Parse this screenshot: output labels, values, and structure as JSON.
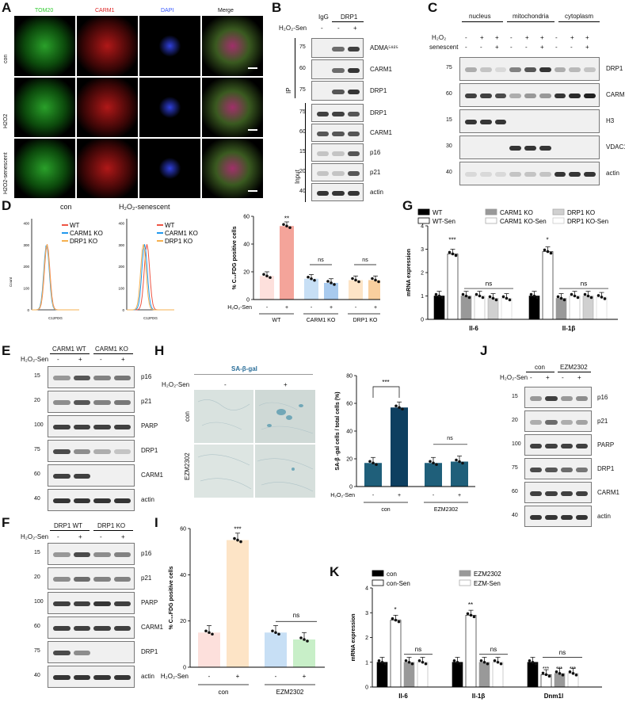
{
  "panels": {
    "A": {
      "letter": "A",
      "channels": [
        "TOM20",
        "CARM1",
        "DAPI",
        "Merge"
      ],
      "rows": [
        "con",
        "H2O2",
        "H2O2-senescent"
      ],
      "channel_colors": [
        "#33cc33",
        "#dd2222",
        "#3355ff",
        "#ffffff"
      ]
    },
    "B": {
      "letter": "B",
      "header_cols": [
        "IgG",
        "DRP1"
      ],
      "treatment_label": "H₂O₂-Sen",
      "treatment_signs": [
        "-",
        "-",
        "+"
      ],
      "ip_label": "IP",
      "input_label": "Input",
      "ip_blots": [
        {
          "mw": "75",
          "name": "ADMA⁵⁸²⁵"
        },
        {
          "mw": "60",
          "name": "CARM1"
        },
        {
          "mw": "75",
          "name": "DRP1"
        }
      ],
      "input_blots": [
        {
          "mw": "75",
          "name": "DRP1"
        },
        {
          "mw": "60",
          "name": "CARM1"
        },
        {
          "mw": "15",
          "name": "p16"
        },
        {
          "mw": "20",
          "name": "p21"
        },
        {
          "mw": "40",
          "name": "actin"
        }
      ]
    },
    "C": {
      "letter": "C",
      "fractions": [
        "nucleus",
        "mitochondria",
        "cytoplasm"
      ],
      "row1_label": "H₂O₂",
      "row2_label": "senescent",
      "row1_signs": [
        "-",
        "+",
        "+",
        "-",
        "+",
        "+",
        "-",
        "+",
        "+"
      ],
      "row2_signs": [
        "-",
        "-",
        "+",
        "-",
        "-",
        "+",
        "-",
        "-",
        "+"
      ],
      "blots": [
        {
          "mw": "75",
          "name": "DRP1"
        },
        {
          "mw": "60",
          "name": "CARM1"
        },
        {
          "mw": "15",
          "name": "H3"
        },
        {
          "mw": "30",
          "name": "VDAC1"
        },
        {
          "mw": "40",
          "name": "actin"
        }
      ]
    },
    "D": {
      "letter": "D",
      "hist_titles": [
        "con",
        "H₂O₂-senescent"
      ],
      "legend": [
        "WT",
        "CARM1 KO",
        "DRP1 KO"
      ],
      "legend_colors": [
        "#ee5544",
        "#2299ee",
        "#f5b050"
      ],
      "hist_xlabel": "C12FDG",
      "hist_ylabel": "Count",
      "hist_yticks": [
        "0",
        "100",
        "200",
        "300",
        "400"
      ],
      "bar_ylabel": "% C₁₂FDG positive cells",
      "bar_yticks": [
        "0",
        "20",
        "40",
        "60"
      ],
      "sign_label": "H₂O₂-Sen",
      "signs": [
        "-",
        "+",
        "-",
        "+",
        "-",
        "+"
      ],
      "groups": [
        "WT",
        "CARM1 KO",
        "DRP1 KO"
      ],
      "sig": [
        "**",
        "ns",
        "ns"
      ]
    },
    "E": {
      "letter": "E",
      "header_cols": [
        "CARM1 WT",
        "CARM1 KO"
      ],
      "treatment_label": "H₂O₂-Sen",
      "signs": [
        "-",
        "+",
        "-",
        "+"
      ],
      "blots": [
        {
          "mw": "15",
          "name": "p16"
        },
        {
          "mw": "20",
          "name": "p21"
        },
        {
          "mw": "100",
          "name": "PARP"
        },
        {
          "mw": "75",
          "name": "DRP1"
        },
        {
          "mw": "60",
          "name": "CARM1"
        },
        {
          "mw": "40",
          "name": "actin"
        }
      ]
    },
    "F": {
      "letter": "F",
      "header_cols": [
        "DRP1 WT",
        "DRP1 KO"
      ],
      "treatment_label": "H₂O₂-Sen",
      "signs": [
        "-",
        "+",
        "-",
        "+"
      ],
      "blots": [
        {
          "mw": "15",
          "name": "p16"
        },
        {
          "mw": "20",
          "name": "p21"
        },
        {
          "mw": "100",
          "name": "PARP"
        },
        {
          "mw": "60",
          "name": "CARM1"
        },
        {
          "mw": "75",
          "name": "DRP1"
        },
        {
          "mw": "40",
          "name": "actin"
        }
      ]
    },
    "G": {
      "letter": "G",
      "legend": [
        "WT",
        "WT-Sen",
        "CARM1 KO",
        "CARM1 KO-Sen",
        "DRP1 KO",
        "DRP1 KO-Sen"
      ],
      "ylabel": "mRNA expression",
      "yticks": [
        "0",
        "1",
        "2",
        "3",
        "4"
      ],
      "groups": [
        "Il-6",
        "Il-1β"
      ],
      "sig": [
        "***",
        "*",
        "ns",
        "ns"
      ]
    },
    "H": {
      "letter": "H",
      "stain_title": "SA-β-gal",
      "treatment_label": "H₂O₂-Sen",
      "col_signs": [
        "-",
        "+"
      ],
      "rows": [
        "con",
        "EZM2302"
      ],
      "bar_ylabel": "SA-β -gal cells / total cells (%)",
      "bar_yticks": [
        "0",
        "20",
        "40",
        "60",
        "80"
      ],
      "sign_label": "H₂O₂-Sen",
      "signs": [
        "-",
        "+",
        "-",
        "+"
      ],
      "groups": [
        "con",
        "EZM2302"
      ],
      "sig": [
        "***",
        "ns"
      ]
    },
    "I": {
      "letter": "I",
      "ylabel": "% C₁₂FDG positive cells",
      "yticks": [
        "0",
        "20",
        "40",
        "60"
      ],
      "sign_label": "H₂O₂-Sen",
      "signs": [
        "-",
        "+",
        "-",
        "+"
      ],
      "groups": [
        "con",
        "EZM2302"
      ],
      "sig": [
        "***",
        "ns"
      ]
    },
    "J": {
      "letter": "J",
      "header_cols": [
        "con",
        "EZM2302"
      ],
      "treatment_label": "H₂O₂-Sen",
      "signs": [
        "-",
        "+",
        "-",
        "+"
      ],
      "blots": [
        {
          "mw": "15",
          "name": "p16"
        },
        {
          "mw": "20",
          "name": "p21"
        },
        {
          "mw": "100",
          "name": "PARP"
        },
        {
          "mw": "75",
          "name": "DRP1"
        },
        {
          "mw": "60",
          "name": "CARM1"
        },
        {
          "mw": "40",
          "name": "actin"
        }
      ]
    },
    "K": {
      "letter": "K",
      "legend": [
        "con",
        "con-Sen",
        "EZM2302",
        "EZM-Sen"
      ],
      "ylabel": "mRNA expression",
      "yticks": [
        "0",
        "1",
        "2",
        "3",
        "4"
      ],
      "groups": [
        "Il-6",
        "Il-1β",
        "Dnm1l"
      ],
      "sig": [
        "*",
        "**",
        "ns",
        "ns",
        "ns",
        "***",
        "***",
        "***"
      ]
    }
  },
  "chart_data": [
    {
      "type": "bar",
      "panel": "D",
      "ylabel": "% C₁₂FDG positive cells",
      "ylim": [
        0,
        60
      ],
      "categories": [
        "WT -",
        "WT +",
        "CARM1 KO -",
        "CARM1 KO +",
        "DRP1 KO -",
        "DRP1 KO +"
      ],
      "values": [
        17,
        53,
        15,
        12,
        14,
        14
      ]
    },
    {
      "type": "bar",
      "panel": "G",
      "ylabel": "mRNA expression",
      "ylim": [
        0,
        4
      ],
      "categories": [
        "Il-6",
        "Il-1β"
      ],
      "series": [
        {
          "name": "WT",
          "values": [
            1,
            1
          ]
        },
        {
          "name": "WT-Sen",
          "values": [
            2.8,
            2.9
          ]
        },
        {
          "name": "CARM1 KO",
          "values": [
            1,
            0.9
          ]
        },
        {
          "name": "CARM1 KO-Sen",
          "values": [
            1,
            1
          ]
        },
        {
          "name": "DRP1 KO",
          "values": [
            0.9,
            1
          ]
        },
        {
          "name": "DRP1 KO-Sen",
          "values": [
            0.9,
            0.95
          ]
        }
      ]
    },
    {
      "type": "bar",
      "panel": "H",
      "ylabel": "SA-β -gal cells / total cells (%)",
      "ylim": [
        0,
        80
      ],
      "categories": [
        "con -",
        "con +",
        "EZM2302 -",
        "EZM2302 +"
      ],
      "values": [
        17,
        57,
        17,
        18
      ]
    },
    {
      "type": "bar",
      "panel": "I",
      "ylabel": "% C₁₂FDG positive cells",
      "ylim": [
        0,
        60
      ],
      "categories": [
        "con -",
        "con +",
        "EZM2302 -",
        "EZM2302 +"
      ],
      "values": [
        15,
        55,
        15,
        12
      ]
    },
    {
      "type": "bar",
      "panel": "K",
      "ylabel": "mRNA expression",
      "ylim": [
        0,
        4
      ],
      "categories": [
        "Il-6",
        "Il-1β",
        "Dnm1l"
      ],
      "series": [
        {
          "name": "con",
          "values": [
            1,
            1,
            1
          ]
        },
        {
          "name": "con-Sen",
          "values": [
            2.7,
            2.9,
            0.5
          ]
        },
        {
          "name": "EZM2302",
          "values": [
            1,
            1,
            0.55
          ]
        },
        {
          "name": "EZM-Sen",
          "values": [
            1,
            1,
            0.55
          ]
        }
      ]
    }
  ]
}
